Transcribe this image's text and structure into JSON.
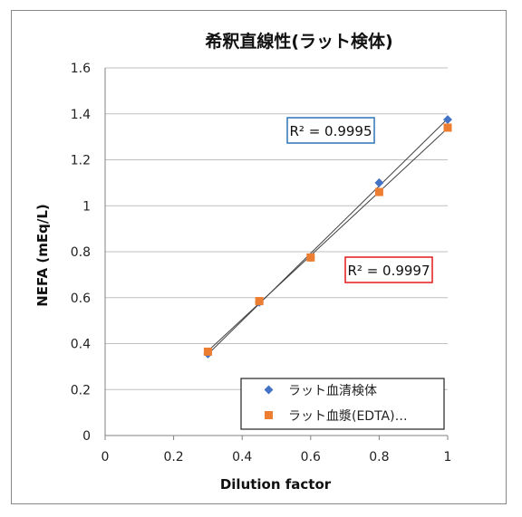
{
  "chart_data": {
    "type": "scatter",
    "title": "希釈直線性(ラット検体)",
    "xlabel": "Dilution factor",
    "ylabel": "NEFA (mEq/L)",
    "xlim": [
      0,
      1
    ],
    "ylim": [
      0,
      1.6
    ],
    "x_ticks": [
      "0",
      "0.2",
      "0.4",
      "0.6",
      "0.8",
      "1"
    ],
    "y_ticks": [
      "0",
      "0.2",
      "0.4",
      "0.6",
      "0.8",
      "1",
      "1.2",
      "1.4",
      "1.6"
    ],
    "grid": "horizontal",
    "legend_position": "bottom-right",
    "series": [
      {
        "name": "ラット血清検体",
        "marker": "diamond",
        "color": "#4472c4",
        "x": [
          0.3,
          0.45,
          0.6,
          0.8,
          1.0
        ],
        "y": [
          0.355,
          0.58,
          0.775,
          1.1,
          1.375
        ],
        "r2_label": "R² = 0.9995",
        "r2_box_color": "#2e74b5"
      },
      {
        "name": "ラット血漿(EDTA)…",
        "marker": "square",
        "color": "#ed7d31",
        "x": [
          0.3,
          0.45,
          0.6,
          0.8,
          1.0
        ],
        "y": [
          0.365,
          0.585,
          0.775,
          1.06,
          1.34
        ],
        "r2_label": "R² = 0.9997",
        "r2_box_color": "#e31a1c"
      }
    ]
  }
}
